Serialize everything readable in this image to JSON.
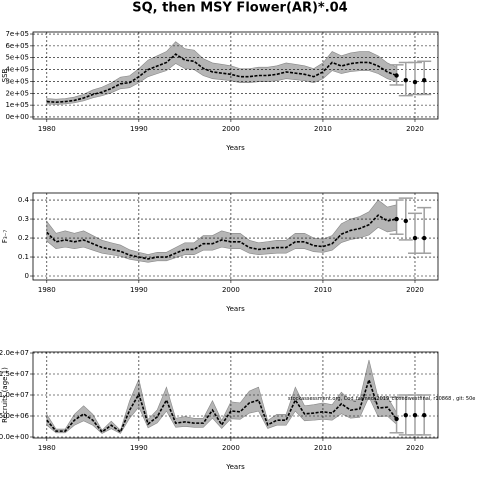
{
  "title": "SQ, then MSY Flower(AR)*.04",
  "chart_data": [
    {
      "type": "line",
      "ylabel": "SSB",
      "xlabel": "Years",
      "x": [
        1980,
        1981,
        1982,
        1983,
        1984,
        1985,
        1986,
        1987,
        1988,
        1989,
        1990,
        1991,
        1992,
        1993,
        1994,
        1995,
        1996,
        1997,
        1998,
        1999,
        2000,
        2001,
        2002,
        2003,
        2004,
        2005,
        2006,
        2007,
        2008,
        2009,
        2010,
        2011,
        2012,
        2013,
        2014,
        2015,
        2016,
        2017,
        2018
      ],
      "values": [
        130000,
        125000,
        130000,
        140000,
        160000,
        190000,
        210000,
        240000,
        280000,
        290000,
        340000,
        400000,
        430000,
        460000,
        530000,
        480000,
        470000,
        410000,
        380000,
        370000,
        360000,
        340000,
        340000,
        350000,
        350000,
        360000,
        380000,
        370000,
        360000,
        340000,
        380000,
        460000,
        430000,
        450000,
        460000,
        460000,
        430000,
        380000,
        350000
      ],
      "lower": [
        110000,
        106000,
        110000,
        119000,
        136000,
        162000,
        179000,
        204000,
        238000,
        247000,
        289000,
        340000,
        366000,
        391000,
        451000,
        408000,
        400000,
        349000,
        323000,
        315000,
        306000,
        289000,
        289000,
        298000,
        298000,
        306000,
        323000,
        315000,
        306000,
        289000,
        323000,
        391000,
        366000,
        383000,
        391000,
        391000,
        366000,
        323000,
        298000
      ],
      "upper": [
        156000,
        150000,
        156000,
        168000,
        192000,
        228000,
        252000,
        288000,
        336000,
        348000,
        408000,
        480000,
        516000,
        552000,
        636000,
        576000,
        564000,
        492000,
        456000,
        444000,
        432000,
        408000,
        408000,
        420000,
        420000,
        432000,
        456000,
        444000,
        432000,
        408000,
        456000,
        552000,
        516000,
        540000,
        552000,
        552000,
        516000,
        456000,
        420000
      ],
      "proj_x": [
        2018,
        2019,
        2020,
        2021
      ],
      "proj_values": [
        350000,
        310000,
        295000,
        310000
      ],
      "proj_lower": [
        270000,
        180000,
        190000,
        190000
      ],
      "proj_upper": [
        440000,
        460000,
        460000,
        470000
      ],
      "color": "#000000",
      "band_color": "#b5b5b5",
      "bar_color": "#a0a0a0",
      "xlim": [
        1978.5,
        2022.5
      ],
      "xticks": [
        1980,
        1990,
        2000,
        2010,
        2020
      ],
      "ylim": [
        -17000,
        717000
      ],
      "yticks": [
        {
          "value": 0,
          "label": "0e+00"
        },
        {
          "value": 100000,
          "label": "1e+05"
        },
        {
          "value": 200000,
          "label": "2e+05"
        },
        {
          "value": 300000,
          "label": "3e+05"
        },
        {
          "value": 400000,
          "label": "4e+05"
        },
        {
          "value": 500000,
          "label": "5e+05"
        },
        {
          "value": 600000,
          "label": "6e+05"
        },
        {
          "value": 700000,
          "label": "7e+05"
        }
      ],
      "grid": true
    },
    {
      "type": "line",
      "ylabel": "F₃₋₇",
      "xlabel": "Years",
      "x": [
        1980,
        1981,
        1982,
        1983,
        1984,
        1985,
        1986,
        1987,
        1988,
        1989,
        1990,
        1991,
        1992,
        1993,
        1994,
        1995,
        1996,
        1997,
        1998,
        1999,
        2000,
        2001,
        2002,
        2003,
        2004,
        2005,
        2006,
        2007,
        2008,
        2009,
        2010,
        2011,
        2012,
        2013,
        2014,
        2015,
        2016,
        2017,
        2018
      ],
      "values": [
        0.23,
        0.18,
        0.19,
        0.18,
        0.19,
        0.17,
        0.15,
        0.14,
        0.13,
        0.11,
        0.1,
        0.09,
        0.1,
        0.1,
        0.12,
        0.14,
        0.14,
        0.17,
        0.17,
        0.19,
        0.18,
        0.18,
        0.15,
        0.14,
        0.145,
        0.15,
        0.15,
        0.18,
        0.18,
        0.16,
        0.155,
        0.17,
        0.22,
        0.24,
        0.25,
        0.27,
        0.32,
        0.29,
        0.3
      ],
      "lower": [
        0.184,
        0.144,
        0.152,
        0.144,
        0.152,
        0.136,
        0.12,
        0.112,
        0.104,
        0.088,
        0.08,
        0.072,
        0.08,
        0.08,
        0.096,
        0.112,
        0.112,
        0.136,
        0.136,
        0.152,
        0.144,
        0.144,
        0.12,
        0.112,
        0.116,
        0.12,
        0.12,
        0.144,
        0.144,
        0.128,
        0.124,
        0.136,
        0.176,
        0.192,
        0.2,
        0.216,
        0.256,
        0.232,
        0.24
      ],
      "upper": [
        0.288,
        0.225,
        0.238,
        0.225,
        0.238,
        0.213,
        0.188,
        0.175,
        0.163,
        0.138,
        0.125,
        0.113,
        0.125,
        0.125,
        0.15,
        0.175,
        0.175,
        0.213,
        0.213,
        0.238,
        0.225,
        0.225,
        0.188,
        0.175,
        0.181,
        0.188,
        0.188,
        0.225,
        0.225,
        0.2,
        0.194,
        0.213,
        0.275,
        0.3,
        0.313,
        0.338,
        0.4,
        0.363,
        0.375
      ],
      "proj_x": [
        2018,
        2019,
        2020,
        2021
      ],
      "proj_values": [
        0.3,
        0.29,
        0.2,
        0.2
      ],
      "proj_lower": [
        0.22,
        0.19,
        0.12,
        0.12
      ],
      "proj_upper": [
        0.4,
        0.41,
        0.33,
        0.36
      ],
      "color": "#000000",
      "band_color": "#b5b5b5",
      "bar_color": "#a0a0a0",
      "xlim": [
        1978.5,
        2022.5
      ],
      "xticks": [
        1980,
        1990,
        2000,
        2010,
        2020
      ],
      "ylim": [
        -0.021,
        0.437
      ],
      "yticks": [
        0.0,
        0.1,
        0.2,
        0.3,
        0.4
      ],
      "grid": true
    },
    {
      "type": "line",
      "ylabel": "Recruits (age 1)",
      "xlabel": "Years",
      "annotation": "stockassessment.org, Cod_farmed_2019_closedwestfinal, r10868 , git: 50e",
      "x": [
        1980,
        1981,
        1982,
        1983,
        1984,
        1985,
        1986,
        1987,
        1988,
        1989,
        1990,
        1991,
        1992,
        1993,
        1994,
        1995,
        1996,
        1997,
        1998,
        1999,
        2000,
        2001,
        2002,
        2003,
        2004,
        2005,
        2006,
        2007,
        2008,
        2009,
        2010,
        2011,
        2012,
        2013,
        2014,
        2015,
        2016,
        2017,
        2018
      ],
      "values": [
        4000000,
        1400000,
        1400000,
        4000000,
        5500000,
        4000000,
        1200000,
        2800000,
        1200000,
        6400000,
        10200000,
        3100000,
        4800000,
        8800000,
        3300000,
        3600000,
        3300000,
        3300000,
        6400000,
        2900000,
        6200000,
        6000000,
        8100000,
        8800000,
        2900000,
        4000000,
        4000000,
        8800000,
        5500000,
        5700000,
        6000000,
        5700000,
        7900000,
        6400000,
        6700000,
        13600000,
        6900000,
        7100000,
        4300000
      ],
      "lower": [
        2800000,
        980000,
        980000,
        2800000,
        3850000,
        2800000,
        840000,
        1960000,
        840000,
        4480000,
        7140000,
        2170000,
        3360000,
        6160000,
        2310000,
        2520000,
        2310000,
        2310000,
        4480000,
        2030000,
        4340000,
        4200000,
        5670000,
        6160000,
        2030000,
        2800000,
        2800000,
        6160000,
        3850000,
        3990000,
        4200000,
        3990000,
        5530000,
        4480000,
        4690000,
        9520000,
        4830000,
        4970000,
        3010000
      ],
      "upper": [
        5400000,
        1890000,
        1890000,
        5400000,
        7425000,
        5400000,
        1620000,
        3780000,
        1620000,
        8640000,
        13770000,
        4185000,
        6480000,
        11880000,
        4455000,
        4860000,
        4455000,
        4455000,
        8640000,
        3915000,
        8370000,
        8100000,
        10935000,
        11880000,
        3915000,
        5400000,
        5400000,
        11880000,
        7425000,
        7695000,
        8100000,
        7695000,
        10665000,
        8640000,
        9045000,
        18360000,
        9315000,
        9585000,
        5805000
      ],
      "proj_x": [
        2018,
        2019,
        2020,
        2021
      ],
      "proj_values": [
        4300000,
        5200000,
        5200000,
        5200000
      ],
      "proj_lower": [
        1000000,
        500000,
        500000,
        500000
      ],
      "proj_upper": [
        9500000,
        10000000,
        10000000,
        10000000
      ],
      "color": "#000000",
      "band_color": "#b5b5b5",
      "bar_color": "#a0a0a0",
      "xlim": [
        1978.5,
        2022.5
      ],
      "xticks": [
        1980,
        1990,
        2000,
        2010,
        2020
      ],
      "ylim": [
        -240000,
        20240000
      ],
      "yticks": [
        {
          "value": 0,
          "label": "0.0e+00"
        },
        {
          "value": 5000000,
          "label": "5.0e+06"
        },
        {
          "value": 10000000,
          "label": "1.0e+07"
        },
        {
          "value": 15000000,
          "label": "1.5e+07"
        },
        {
          "value": 20000000,
          "label": "2.0e+07"
        }
      ],
      "grid": true
    }
  ]
}
